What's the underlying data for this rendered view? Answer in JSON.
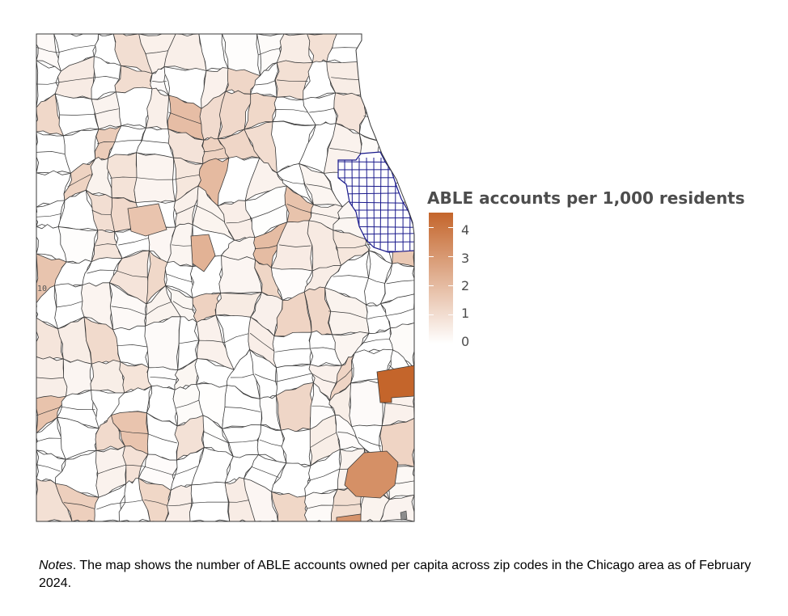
{
  "map": {
    "region": "Chicago area",
    "fill_low": "#ffffff",
    "fill_high": "#c4652b",
    "border_color": "#3a3a3a",
    "highlight_border_color": "#1a1a8c",
    "highlight_region": "Chicago city zip codes"
  },
  "legend": {
    "title": "ABLE accounts per 1,000 residents",
    "ticks": [
      "4",
      "3",
      "2",
      "1",
      "0"
    ],
    "range": [
      0,
      4.5
    ]
  },
  "notes": {
    "label": "Notes",
    "text": ". The map shows the number of ABLE accounts owned per capita across zip codes in the Chicago area as of February 2024."
  },
  "stray_label": {
    "text": "10"
  }
}
